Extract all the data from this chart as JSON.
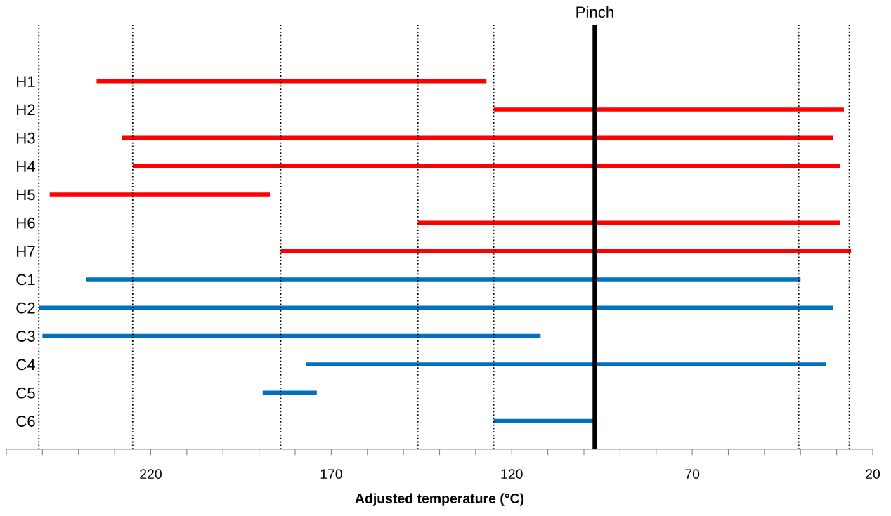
{
  "chart_data": {
    "type": "bar",
    "orientation": "horizontal",
    "xlabel": "Adjusted temperature (°C)",
    "categories": [
      "H1",
      "H2",
      "H3",
      "H4",
      "H5",
      "H6",
      "H7",
      "C1",
      "C2",
      "C3",
      "C4",
      "C5",
      "C6"
    ],
    "base": [
      235,
      125,
      228,
      225,
      248,
      146,
      184,
      238,
      251,
      250,
      177,
      189,
      125
    ],
    "values": [
      -108,
      -97,
      -197,
      -196,
      -61,
      -117,
      -158,
      -198,
      -220,
      -138,
      -144,
      -15,
      -28
    ],
    "colors": [
      "#ff0000",
      "#ff0000",
      "#ff0000",
      "#ff0000",
      "#ff0000",
      "#ff0000",
      "#ff0000",
      "#0070c0",
      "#0070c0",
      "#0070c0",
      "#0070c0",
      "#0070c0",
      "#0070c0"
    ],
    "xlim": [
      260,
      20
    ],
    "xticks": [
      {
        "value": 260,
        "label": null
      },
      {
        "value": 250,
        "label": null
      },
      {
        "value": 240,
        "label": null
      },
      {
        "value": 230,
        "label": null
      },
      220,
      {
        "value": 210,
        "label": null
      },
      {
        "value": 200,
        "label": null
      },
      {
        "value": 190,
        "label": null
      },
      {
        "value": 180,
        "label": null
      },
      170,
      {
        "value": 160,
        "label": null
      },
      {
        "value": 150,
        "label": null
      },
      {
        "value": 140,
        "label": null
      },
      {
        "value": 130,
        "label": null
      },
      120,
      {
        "value": 110,
        "label": null
      },
      {
        "value": 100,
        "label": null
      },
      {
        "value": 90,
        "label": null
      },
      {
        "value": 80,
        "label": null
      },
      70,
      {
        "value": 60,
        "label": null
      },
      {
        "value": 50,
        "label": null
      },
      {
        "value": 40,
        "label": null
      },
      {
        "value": 30,
        "label": null
      },
      20
    ],
    "ref_lines": [
      {
        "axis": "x",
        "value": 97,
        "label": "Pinch",
        "color": "#000000",
        "line_style": "solid"
      },
      {
        "axis": "x",
        "value": 251,
        "color": "#000000",
        "line_style": "dotted"
      },
      {
        "axis": "x",
        "value": 225,
        "color": "#000000",
        "line_style": "dotted"
      },
      {
        "axis": "x",
        "value": 184,
        "color": "#000000",
        "line_style": "dotted"
      },
      {
        "axis": "x",
        "value": 146,
        "color": "#000000",
        "line_style": "dotted"
      },
      {
        "axis": "x",
        "value": 125,
        "color": "#000000",
        "line_style": "dotted"
      },
      {
        "axis": "x",
        "value": 40.5,
        "color": "#000000",
        "line_style": "dotted"
      },
      {
        "axis": "x",
        "value": 26.5,
        "color": "#000000",
        "line_style": "dotted"
      }
    ],
    "grid": false,
    "legend": false
  }
}
